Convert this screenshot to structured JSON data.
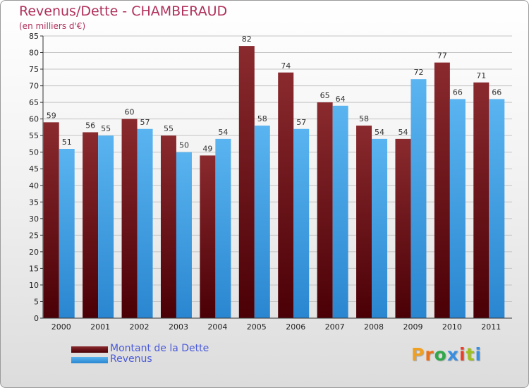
{
  "title": "Revenus/Dette - CHAMBERAUD",
  "subtitle": "(en milliers d'€)",
  "logo_text": "Proxiti",
  "colors": {
    "debt": "#6b0f14",
    "revenue": "#4aa6e8",
    "title": "#b0305a",
    "legend_text": "#4a5ad8"
  },
  "chart_data": {
    "type": "bar",
    "categories": [
      "2000",
      "2001",
      "2002",
      "2003",
      "2004",
      "2005",
      "2006",
      "2007",
      "2008",
      "2009",
      "2010",
      "2011"
    ],
    "series": [
      {
        "name": "Montant de la Dette",
        "values": [
          59,
          56,
          60,
          55,
          49,
          82,
          74,
          65,
          58,
          54,
          77,
          71
        ]
      },
      {
        "name": "Revenus",
        "values": [
          51,
          55,
          57,
          50,
          54,
          58,
          57,
          64,
          54,
          72,
          66,
          66
        ]
      }
    ],
    "ylim": [
      0,
      85
    ],
    "ytick_step": 5,
    "grid": true,
    "legend": "bottom-left"
  }
}
